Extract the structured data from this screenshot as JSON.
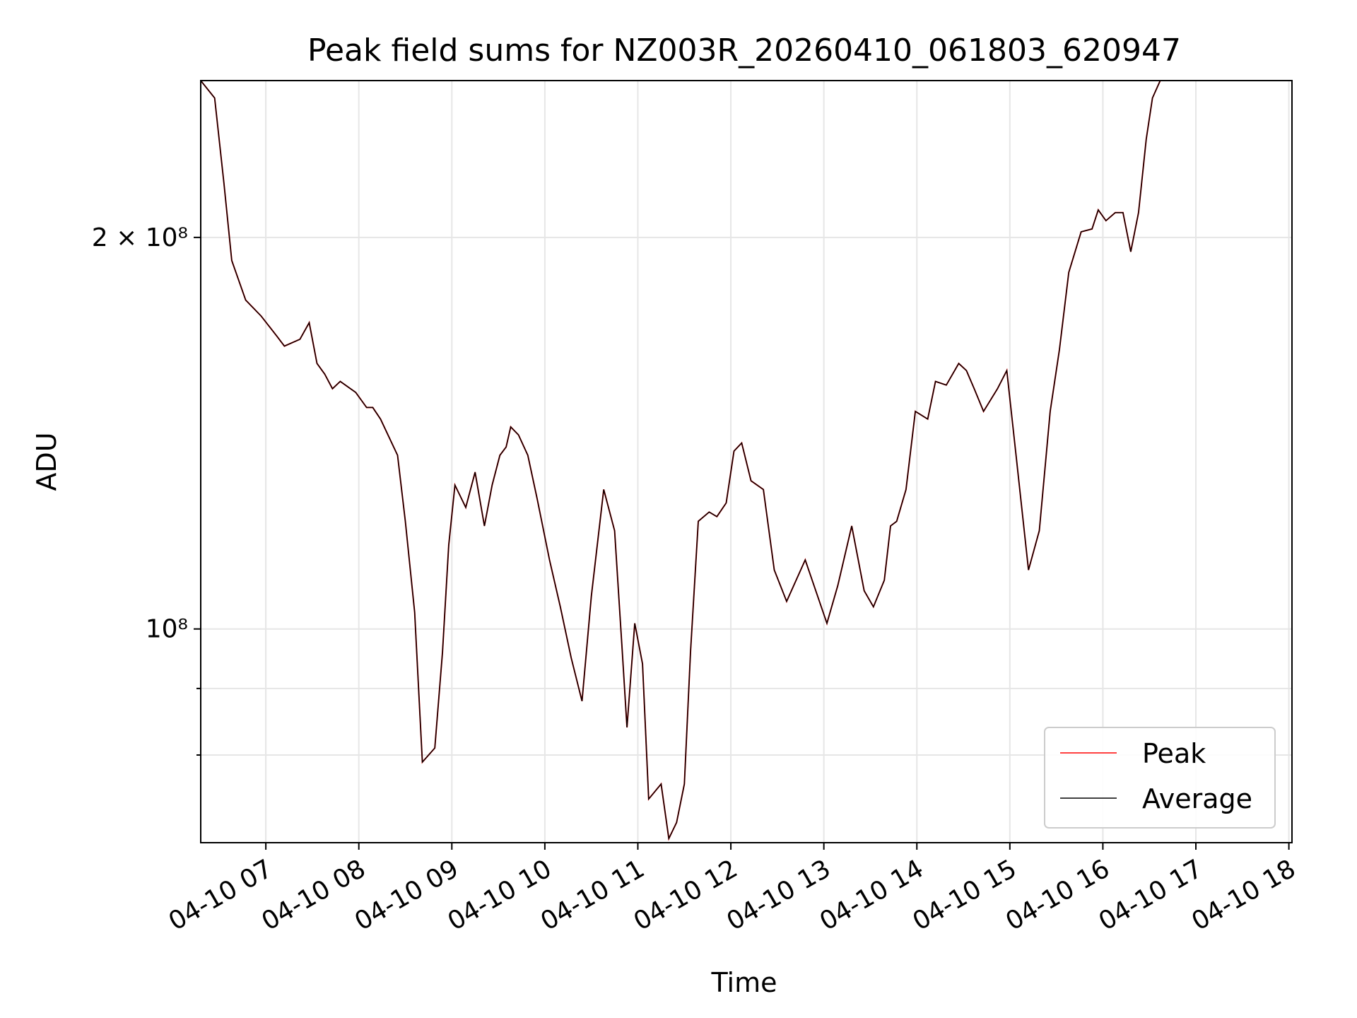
{
  "chart_data": {
    "type": "line",
    "title": "Peak field sums for NZ003R_20260410_061803_620947",
    "xlabel": "Time",
    "ylabel": "ADU",
    "yscale": "log",
    "grid": true,
    "legend_position": "lower-right",
    "xlim": [
      "2026-04-10 06:18",
      "2026-04-10 18:02"
    ],
    "ylim": [
      68500000,
      264000000
    ],
    "x_ticks": [
      "04-10 07",
      "04-10 08",
      "04-10 09",
      "04-10 10",
      "04-10 11",
      "04-10 12",
      "04-10 13",
      "04-10 14",
      "04-10 15",
      "04-10 16",
      "04-10 17",
      "04-10 18"
    ],
    "y_ticks": [
      {
        "value": 200000000,
        "label": "2 × 10⁸",
        "major": true
      },
      {
        "value": 100000000,
        "label": "10⁸",
        "major": true
      },
      {
        "value": 90000000,
        "label": "",
        "major": false
      },
      {
        "value": 80000000,
        "label": "",
        "major": false
      }
    ],
    "series": [
      {
        "name": "Peak",
        "color": "#ff0000"
      },
      {
        "name": "Average",
        "color": "#000000"
      }
    ],
    "x": [
      "2026-04-10 06:18",
      "2026-04-10 06:27",
      "2026-04-10 06:33",
      "2026-04-10 06:38",
      "2026-04-10 06:47",
      "2026-04-10 06:57",
      "2026-04-10 07:07",
      "2026-04-10 07:12",
      "2026-04-10 07:22",
      "2026-04-10 07:28",
      "2026-04-10 07:33",
      "2026-04-10 07:38",
      "2026-04-10 07:43",
      "2026-04-10 07:48",
      "2026-04-10 07:58",
      "2026-04-10 08:05",
      "2026-04-10 08:09",
      "2026-04-10 08:14",
      "2026-04-10 08:25",
      "2026-04-10 08:30",
      "2026-04-10 08:36",
      "2026-04-10 08:41",
      "2026-04-10 08:49",
      "2026-04-10 08:54",
      "2026-04-10 08:58",
      "2026-04-10 09:02",
      "2026-04-10 09:09",
      "2026-04-10 09:15",
      "2026-04-10 09:21",
      "2026-04-10 09:26",
      "2026-04-10 09:31",
      "2026-04-10 09:35",
      "2026-04-10 09:38",
      "2026-04-10 09:43",
      "2026-04-10 09:49",
      "2026-04-10 09:55",
      "2026-04-10 10:03",
      "2026-04-10 10:10",
      "2026-04-10 10:17",
      "2026-04-10 10:24",
      "2026-04-10 10:30",
      "2026-04-10 10:38",
      "2026-04-10 10:45",
      "2026-04-10 10:50",
      "2026-04-10 10:53",
      "2026-04-10 10:58",
      "2026-04-10 11:03",
      "2026-04-10 11:07",
      "2026-04-10 11:15",
      "2026-04-10 11:20",
      "2026-04-10 11:25",
      "2026-04-10 11:30",
      "2026-04-10 11:34",
      "2026-04-10 11:39",
      "2026-04-10 11:46",
      "2026-04-10 11:51",
      "2026-04-10 11:57",
      "2026-04-10 12:02",
      "2026-04-10 12:07",
      "2026-04-10 12:13",
      "2026-04-10 12:21",
      "2026-04-10 12:28",
      "2026-04-10 12:36",
      "2026-04-10 12:48",
      "2026-04-10 13:02",
      "2026-04-10 13:09",
      "2026-04-10 13:18",
      "2026-04-10 13:26",
      "2026-04-10 13:32",
      "2026-04-10 13:39",
      "2026-04-10 13:43",
      "2026-04-10 13:47",
      "2026-04-10 13:53",
      "2026-04-10 13:59",
      "2026-04-10 14:07",
      "2026-04-10 14:12",
      "2026-04-10 14:19",
      "2026-04-10 14:27",
      "2026-04-10 14:32",
      "2026-04-10 14:37",
      "2026-04-10 14:43",
      "2026-04-10 14:52",
      "2026-04-10 14:58",
      "2026-04-10 15:04",
      "2026-04-10 15:12",
      "2026-04-10 15:19",
      "2026-04-10 15:26",
      "2026-04-10 15:32",
      "2026-04-10 15:38",
      "2026-04-10 15:46",
      "2026-04-10 15:53",
      "2026-04-10 15:57",
      "2026-04-10 16:02",
      "2026-04-10 16:08",
      "2026-04-10 16:13",
      "2026-04-10 16:18",
      "2026-04-10 16:23",
      "2026-04-10 16:28",
      "2026-04-10 16:32",
      "2026-04-10 16:37",
      "2026-04-10 16:41",
      "2026-04-10 16:45",
      "2026-04-10 16:50",
      "2026-04-10 17:00",
      "2026-04-10 17:11",
      "2026-04-10 17:22",
      "2026-04-10 17:32",
      "2026-04-10 17:39",
      "2026-04-10 17:43",
      "2026-04-10 17:47",
      "2026-04-10 17:55",
      "2026-04-10 18:02"
    ],
    "values": [
      264000000,
      256000000,
      220000000,
      192000000,
      179000000,
      174000000,
      168000000,
      165000000,
      167000000,
      172000000,
      160000000,
      157000000,
      153000000,
      155000000,
      152000000,
      148000000,
      148000000,
      145000000,
      136000000,
      121000000,
      103000000,
      79000000,
      81000000,
      96000000,
      116000000,
      129000000,
      124000000,
      132000000,
      120000000,
      129000000,
      136000000,
      138000000,
      143000000,
      141000000,
      136000000,
      126000000,
      113000000,
      104000000,
      95000000,
      88000000,
      106000000,
      128000000,
      119000000,
      96000000,
      84000000,
      101000000,
      94000000,
      74000000,
      76000000,
      69000000,
      71000000,
      76000000,
      96000000,
      121000000,
      123000000,
      122000000,
      125000000,
      137000000,
      139000000,
      130000000,
      128000000,
      111000000,
      105000000,
      113000000,
      101000000,
      108000000,
      120000000,
      107000000,
      104000000,
      109000000,
      120000000,
      121000000,
      128000000,
      147000000,
      145000000,
      155000000,
      154000000,
      160000000,
      158000000,
      153000000,
      147000000,
      153000000,
      158000000,
      136000000,
      111000000,
      119000000,
      147000000,
      164000000,
      188000000,
      202000000,
      203000000,
      210000000,
      206000000,
      209000000,
      209000000,
      195000000,
      209000000,
      238000000,
      256000000,
      264000000,
      264000000,
      264000000,
      264000000,
      264000000,
      264000000,
      264000000,
      264000000,
      264000000,
      264000000,
      264000000,
      264000000,
      264000000
    ]
  }
}
